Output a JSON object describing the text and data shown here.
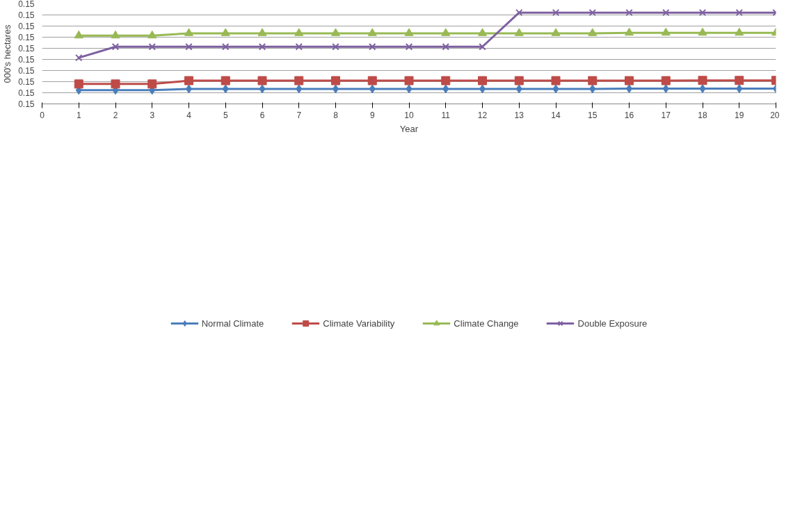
{
  "chart_data": {
    "type": "line",
    "xlabel": "Year",
    "ylabel": "000's hectares",
    "x": [
      1,
      2,
      3,
      4,
      5,
      6,
      7,
      8,
      9,
      10,
      11,
      12,
      13,
      14,
      15,
      16,
      17,
      18,
      19,
      20
    ],
    "xlim": [
      0,
      20
    ],
    "xticks": [
      0,
      1,
      2,
      3,
      4,
      5,
      6,
      7,
      8,
      9,
      10,
      11,
      12,
      13,
      14,
      15,
      16,
      17,
      18,
      19,
      20
    ],
    "ylim": [
      0.1455,
      0.1545
    ],
    "yticks": [
      {
        "value": 0.1455,
        "label": "0.15"
      },
      {
        "value": 0.1465,
        "label": "0.15"
      },
      {
        "value": 0.1475,
        "label": "0.15"
      },
      {
        "value": 0.1485,
        "label": "0.15"
      },
      {
        "value": 0.1495,
        "label": "0.15"
      },
      {
        "value": 0.1505,
        "label": "0.15"
      },
      {
        "value": 0.1515,
        "label": "0.15"
      },
      {
        "value": 0.1525,
        "label": "0.15"
      },
      {
        "value": 0.1535,
        "label": "0.15"
      },
      {
        "value": 0.1545,
        "label": "0.15"
      }
    ],
    "grid": "y",
    "legend": "bottom",
    "line_style": "solid",
    "series": [
      {
        "name": "Normal Climate",
        "color": "#4a7ebb",
        "marker": "diamond",
        "values": [
          0.14673,
          0.14673,
          0.14673,
          0.14685,
          0.14685,
          0.14685,
          0.14685,
          0.14685,
          0.14685,
          0.14685,
          0.14685,
          0.14685,
          0.14685,
          0.14685,
          0.14685,
          0.14687,
          0.14687,
          0.14687,
          0.14687,
          0.14687
        ]
      },
      {
        "name": "Climate Variability",
        "color": "#be4b48",
        "marker": "square",
        "values": [
          0.14729,
          0.14729,
          0.14729,
          0.14759,
          0.14759,
          0.14759,
          0.14759,
          0.14759,
          0.14759,
          0.14759,
          0.14759,
          0.14759,
          0.14759,
          0.14759,
          0.14759,
          0.14759,
          0.14759,
          0.14761,
          0.14761,
          0.14761
        ]
      },
      {
        "name": "Climate Change",
        "color": "#98b954",
        "marker": "triangle",
        "values": [
          0.15164,
          0.15164,
          0.15164,
          0.15185,
          0.15185,
          0.15185,
          0.15185,
          0.15185,
          0.15185,
          0.15185,
          0.15185,
          0.15185,
          0.15185,
          0.15185,
          0.15185,
          0.15189,
          0.15189,
          0.15189,
          0.15189,
          0.15189
        ]
      },
      {
        "name": "Double Exposure",
        "color": "#7d60a0",
        "marker": "cross",
        "values": [
          0.14965,
          0.15064,
          0.15064,
          0.15064,
          0.15064,
          0.15064,
          0.15064,
          0.15064,
          0.15064,
          0.15064,
          0.15064,
          0.15064,
          0.15371,
          0.15371,
          0.15371,
          0.15371,
          0.15371,
          0.15371,
          0.15371,
          0.15371
        ]
      }
    ]
  }
}
